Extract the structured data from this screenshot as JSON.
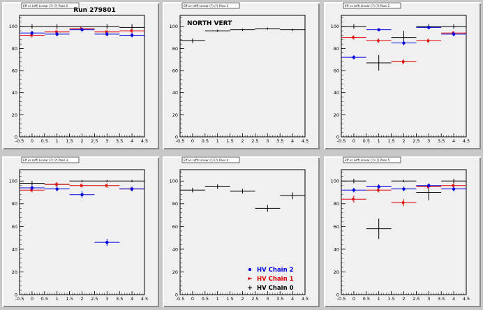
{
  "page": {
    "run_label": "Run 279801",
    "colors": {
      "chain2": "#0000e0",
      "chain1": "#e00000",
      "chain0": "#000000",
      "frame_bg": "#f0f0f0",
      "canvas_bg": "#c8c8c8"
    }
  },
  "legend": {
    "entries": [
      {
        "key": "chain2",
        "label": "HV Chain 2",
        "marker": "dot"
      },
      {
        "key": "chain1",
        "label": "HV Chain 1",
        "marker": "triangle"
      },
      {
        "key": "chain0",
        "label": "HV Chain 0",
        "marker": "plus"
      }
    ]
  },
  "chart_data": [
    {
      "type": "scatter",
      "id": "panel-1",
      "title": "Eff vs (eff) Linear (?) (?) Pass 0",
      "annotation": "",
      "xlim": [
        -0.5,
        4.5
      ],
      "ylim": [
        0,
        110
      ],
      "xticks": [
        "-0.5",
        "0",
        "0.5",
        "1",
        "1.5",
        "2",
        "2.5",
        "3",
        "3.5",
        "4",
        "4.5"
      ],
      "yticks": [
        "0",
        "20",
        "40",
        "60",
        "80",
        "100"
      ],
      "series": [
        {
          "key": "chain0",
          "points": [
            {
              "x": 0,
              "y": 100,
              "ey": 2
            },
            {
              "x": 1,
              "y": 100,
              "ey": 2
            },
            {
              "x": 2,
              "y": 100,
              "ey": 0
            },
            {
              "x": 3,
              "y": 100,
              "ey": 2
            },
            {
              "x": 4,
              "y": 99,
              "ey": 3
            }
          ]
        },
        {
          "key": "chain1",
          "points": [
            {
              "x": 0,
              "y": 92,
              "ey": 2
            },
            {
              "x": 1,
              "y": 95,
              "ey": 2
            },
            {
              "x": 2,
              "y": 98,
              "ey": 1
            },
            {
              "x": 3,
              "y": 95,
              "ey": 2
            },
            {
              "x": 4,
              "y": 96,
              "ey": 2
            }
          ]
        },
        {
          "key": "chain2",
          "points": [
            {
              "x": 0,
              "y": 94,
              "ey": 2
            },
            {
              "x": 1,
              "y": 93,
              "ey": 2
            },
            {
              "x": 2,
              "y": 97,
              "ey": 1
            },
            {
              "x": 3,
              "y": 93,
              "ey": 2
            },
            {
              "x": 4,
              "y": 92,
              "ey": 2
            }
          ]
        }
      ]
    },
    {
      "type": "scatter",
      "id": "panel-2",
      "title": "Eff vs (eff) Linear (?) (?) Pass 1",
      "annotation": "NORTH VERT",
      "xlim": [
        -0.5,
        4.5
      ],
      "ylim": [
        0,
        110
      ],
      "xticks": [
        "-0.5",
        "0",
        "0.5",
        "1",
        "1.5",
        "2",
        "2.5",
        "3",
        "3.5",
        "4",
        "4.5"
      ],
      "yticks": [
        "0",
        "20",
        "40",
        "60",
        "80",
        "100"
      ],
      "series": [
        {
          "key": "chain0",
          "points": [
            {
              "x": 0,
              "y": 87,
              "ey": 2
            },
            {
              "x": 1,
              "y": 96,
              "ey": 1
            },
            {
              "x": 2,
              "y": 97,
              "ey": 1
            },
            {
              "x": 3,
              "y": 98,
              "ey": 1
            },
            {
              "x": 4,
              "y": 97,
              "ey": 1
            }
          ]
        }
      ]
    },
    {
      "type": "scatter",
      "id": "panel-3",
      "title": "Eff vs (eff) Linear (?) (?) Pass 2",
      "annotation": "",
      "xlim": [
        -0.5,
        4.5
      ],
      "ylim": [
        0,
        110
      ],
      "xticks": [
        "-0.5",
        "0",
        "0.5",
        "1",
        "1.5",
        "2",
        "2.5",
        "3",
        "3.5",
        "4",
        "4.5"
      ],
      "yticks": [
        "0",
        "20",
        "40",
        "60",
        "80",
        "100"
      ],
      "series": [
        {
          "key": "chain0",
          "points": [
            {
              "x": 0,
              "y": 100,
              "ey": 2
            },
            {
              "x": 1,
              "y": 67,
              "ey": 7
            },
            {
              "x": 2,
              "y": 90,
              "ey": 6
            },
            {
              "x": 3,
              "y": 100,
              "ey": 2
            },
            {
              "x": 4,
              "y": 100,
              "ey": 2
            }
          ]
        },
        {
          "key": "chain1",
          "points": [
            {
              "x": 0,
              "y": 90,
              "ey": 2
            },
            {
              "x": 1,
              "y": 87,
              "ey": 2
            },
            {
              "x": 2,
              "y": 68,
              "ey": 2
            },
            {
              "x": 3,
              "y": 87,
              "ey": 2
            },
            {
              "x": 4,
              "y": 94,
              "ey": 2
            }
          ]
        },
        {
          "key": "chain2",
          "points": [
            {
              "x": 0,
              "y": 72,
              "ey": 2
            },
            {
              "x": 1,
              "y": 97,
              "ey": 1
            },
            {
              "x": 2,
              "y": 85,
              "ey": 2
            },
            {
              "x": 3,
              "y": 99,
              "ey": 1
            },
            {
              "x": 4,
              "y": 93,
              "ey": 2
            }
          ]
        }
      ]
    },
    {
      "type": "scatter",
      "id": "panel-4",
      "title": "Eff vs (eff) Linear (?) (?) Pass 3",
      "annotation": "",
      "xlim": [
        -0.5,
        4.5
      ],
      "ylim": [
        0,
        110
      ],
      "xticks": [
        "-0.5",
        "0",
        "0.5",
        "1",
        "1.5",
        "2",
        "2.5",
        "3",
        "3.5",
        "4",
        "4.5"
      ],
      "yticks": [
        "0",
        "20",
        "40",
        "60",
        "80",
        "100"
      ],
      "series": [
        {
          "key": "chain0",
          "points": [
            {
              "x": 0,
              "y": 98,
              "ey": 2
            },
            {
              "x": 1,
              "y": 97,
              "ey": 2
            },
            {
              "x": 2,
              "y": 100,
              "ey": 1
            },
            {
              "x": 3,
              "y": 100,
              "ey": 1
            },
            {
              "x": 4,
              "y": 100,
              "ey": 1
            }
          ]
        },
        {
          "key": "chain1",
          "points": [
            {
              "x": 0,
              "y": 92,
              "ey": 2
            },
            {
              "x": 1,
              "y": 97,
              "ey": 2
            },
            {
              "x": 2,
              "y": 96,
              "ey": 2
            },
            {
              "x": 3,
              "y": 96,
              "ey": 2
            },
            {
              "x": 4,
              "y": 93,
              "ey": 2
            }
          ]
        },
        {
          "key": "chain2",
          "points": [
            {
              "x": 0,
              "y": 94,
              "ey": 2
            },
            {
              "x": 1,
              "y": 93,
              "ey": 2
            },
            {
              "x": 2,
              "y": 88,
              "ey": 3
            },
            {
              "x": 3,
              "y": 46,
              "ey": 3
            },
            {
              "x": 4,
              "y": 93,
              "ey": 2
            }
          ]
        }
      ]
    },
    {
      "type": "scatter",
      "id": "panel-5",
      "title": "Eff vs (eff) Linear (?) (?) Pass 4",
      "annotation": "",
      "xlim": [
        -0.5,
        4.5
      ],
      "ylim": [
        0,
        110
      ],
      "xticks": [
        "-0.5",
        "0",
        "0.5",
        "1",
        "1.5",
        "2",
        "2.5",
        "3",
        "3.5",
        "4",
        "4.5"
      ],
      "yticks": [
        "0",
        "20",
        "40",
        "60",
        "80",
        "100"
      ],
      "series": [
        {
          "key": "chain0",
          "points": [
            {
              "x": 0,
              "y": 92,
              "ey": 2
            },
            {
              "x": 1,
              "y": 95,
              "ey": 2
            },
            {
              "x": 2,
              "y": 91,
              "ey": 2
            },
            {
              "x": 3,
              "y": 76,
              "ey": 3
            },
            {
              "x": 4,
              "y": 87,
              "ey": 3
            }
          ]
        }
      ]
    },
    {
      "type": "scatter",
      "id": "panel-6",
      "title": "Eff vs (eff) Linear (?) (?) Pass 5",
      "annotation": "",
      "xlim": [
        -0.5,
        4.5
      ],
      "ylim": [
        0,
        110
      ],
      "xticks": [
        "-0.5",
        "0",
        "0.5",
        "1",
        "1.5",
        "2",
        "2.5",
        "3",
        "3.5",
        "4",
        "4.5"
      ],
      "yticks": [
        "0",
        "20",
        "40",
        "60",
        "80",
        "100"
      ],
      "series": [
        {
          "key": "chain0",
          "points": [
            {
              "x": 0,
              "y": 100,
              "ey": 2
            },
            {
              "x": 1,
              "y": 58,
              "ey": 9
            },
            {
              "x": 2,
              "y": 100,
              "ey": 1
            },
            {
              "x": 3,
              "y": 90,
              "ey": 7
            },
            {
              "x": 4,
              "y": 100,
              "ey": 2
            }
          ]
        },
        {
          "key": "chain1",
          "points": [
            {
              "x": 0,
              "y": 84,
              "ey": 3
            },
            {
              "x": 1,
              "y": 92,
              "ey": 2
            },
            {
              "x": 2,
              "y": 81,
              "ey": 3
            },
            {
              "x": 3,
              "y": 95,
              "ey": 2
            },
            {
              "x": 4,
              "y": 96,
              "ey": 2
            }
          ]
        },
        {
          "key": "chain2",
          "points": [
            {
              "x": 0,
              "y": 92,
              "ey": 2
            },
            {
              "x": 1,
              "y": 95,
              "ey": 2
            },
            {
              "x": 2,
              "y": 93,
              "ey": 2
            },
            {
              "x": 3,
              "y": 96,
              "ey": 2
            },
            {
              "x": 4,
              "y": 93,
              "ey": 2
            }
          ]
        }
      ]
    }
  ]
}
